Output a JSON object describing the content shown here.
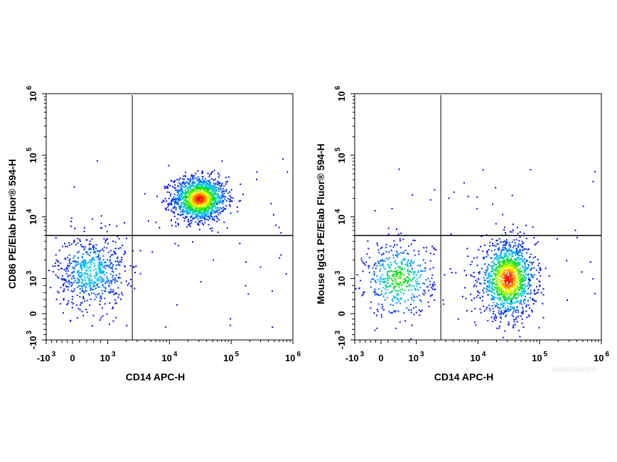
{
  "chart_data": [
    {
      "type": "scatter",
      "subtype": "flow-cytometry-density-dot-plot",
      "xlabel": "CD14 APC-H",
      "ylabel": "CD86 PE/Elab Fluor® 594-H",
      "x_scale": "biexponential",
      "y_scale": "biexponential",
      "xlim": [
        -1000,
        1000000
      ],
      "ylim": [
        -1000,
        1000000
      ],
      "x_ticks": [
        {
          "base": "-10",
          "exp": "3"
        },
        {
          "base": "0",
          "exp": ""
        },
        {
          "base": "10",
          "exp": "3"
        },
        {
          "base": "10",
          "exp": "4"
        },
        {
          "base": "10",
          "exp": "5"
        },
        {
          "base": "10",
          "exp": "6"
        }
      ],
      "y_ticks": [
        {
          "base": "-10",
          "exp": "3"
        },
        {
          "base": "0",
          "exp": ""
        },
        {
          "base": "10",
          "exp": "3"
        },
        {
          "base": "10",
          "exp": "4"
        },
        {
          "base": "10",
          "exp": "5"
        },
        {
          "base": "10",
          "exp": "6"
        }
      ],
      "quadrant_gate": {
        "x": 2500,
        "y": 5000
      },
      "populations": [
        {
          "x_center": 30000,
          "y_center": 20000,
          "relative_events": 1.0,
          "peak_density": "high"
        },
        {
          "x_center": 500,
          "y_center": 1300,
          "relative_events": 0.45,
          "peak_density": "low"
        }
      ],
      "density_colors": [
        "#0000ff",
        "#00c8ff",
        "#00e000",
        "#ffff00",
        "#ff0000"
      ]
    },
    {
      "type": "scatter",
      "subtype": "flow-cytometry-density-dot-plot",
      "xlabel": "CD14 APC-H",
      "ylabel": "Mouse IgG1 PE/Elab Fluor® 594-H",
      "x_scale": "biexponential",
      "y_scale": "biexponential",
      "xlim": [
        -1000,
        1000000
      ],
      "ylim": [
        -1000,
        1000000
      ],
      "x_ticks": [
        {
          "base": "-10",
          "exp": "3"
        },
        {
          "base": "0",
          "exp": ""
        },
        {
          "base": "10",
          "exp": "3"
        },
        {
          "base": "10",
          "exp": "4"
        },
        {
          "base": "10",
          "exp": "5"
        },
        {
          "base": "10",
          "exp": "6"
        }
      ],
      "y_ticks": [
        {
          "base": "-10",
          "exp": "3"
        },
        {
          "base": "0",
          "exp": ""
        },
        {
          "base": "10",
          "exp": "3"
        },
        {
          "base": "10",
          "exp": "4"
        },
        {
          "base": "10",
          "exp": "5"
        },
        {
          "base": "10",
          "exp": "6"
        }
      ],
      "quadrant_gate": {
        "x": 2500,
        "y": 5000
      },
      "populations": [
        {
          "x_center": 30000,
          "y_center": 1000,
          "relative_events": 1.0,
          "peak_density": "high"
        },
        {
          "x_center": 500,
          "y_center": 1000,
          "relative_events": 0.35,
          "peak_density": "medium"
        }
      ],
      "density_colors": [
        "#0000ff",
        "#00c8ff",
        "#00e000",
        "#ffff00",
        "#ff0000"
      ]
    }
  ],
  "watermark": "elabscience"
}
